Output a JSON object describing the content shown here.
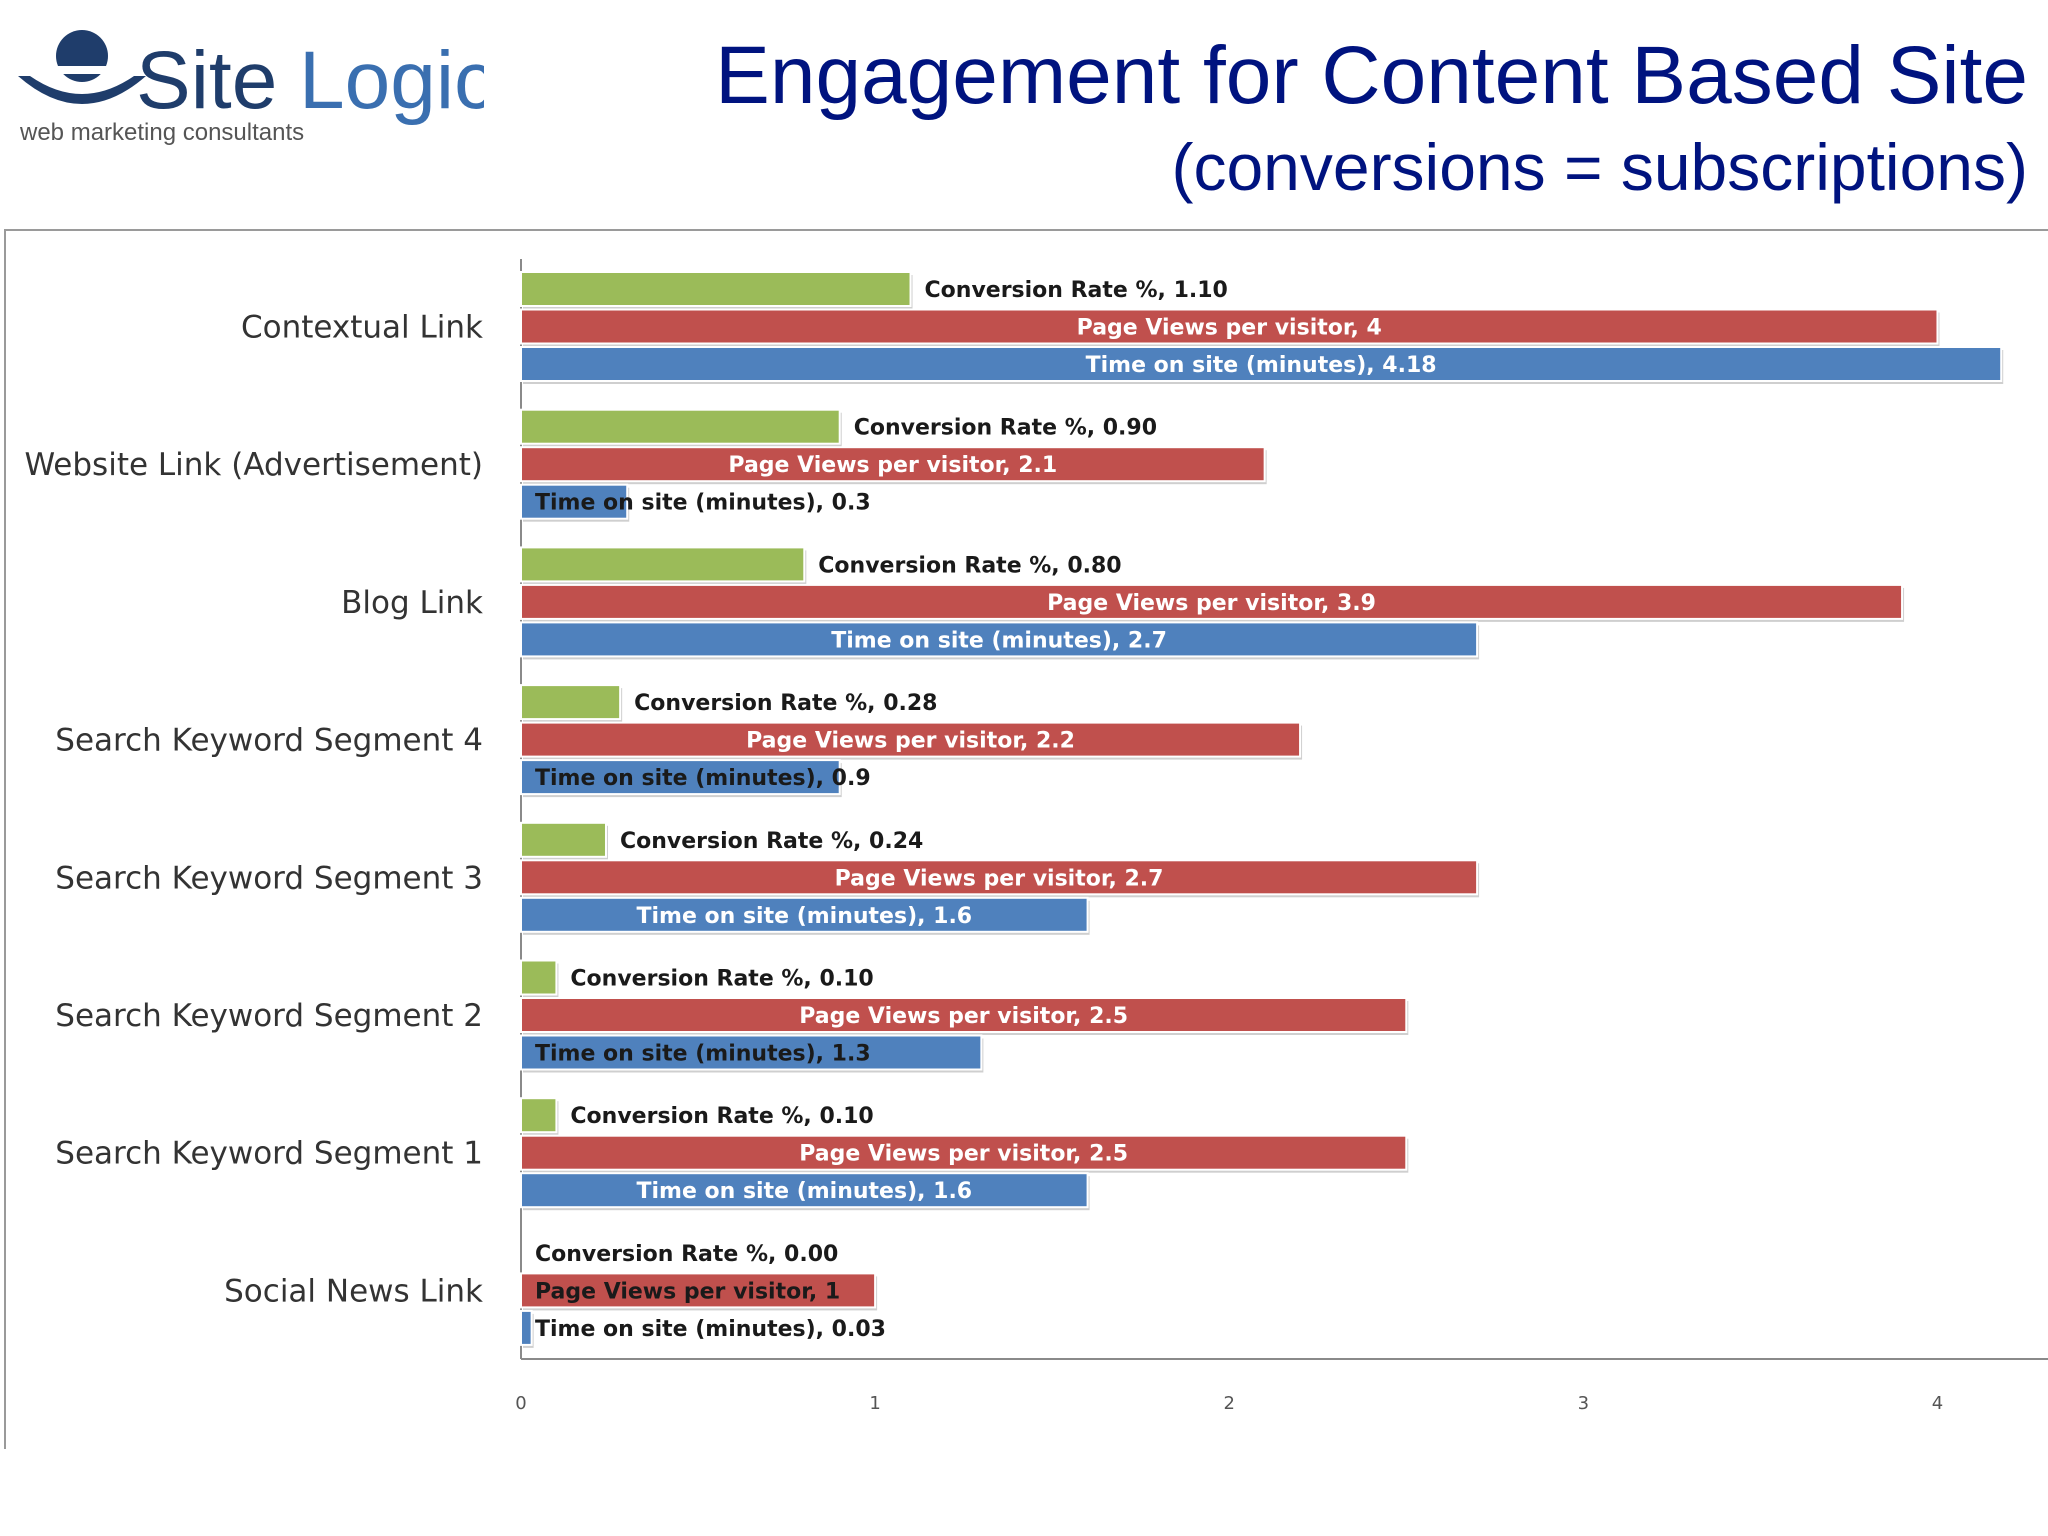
{
  "logo": {
    "brand_part1": "Site",
    "brand_part2": "Logic",
    "tagline": "web marketing consultants",
    "colors": {
      "navy": "#1f3d6b",
      "blue": "#3a6fb0"
    }
  },
  "header": {
    "title": "Engagement for Content Based Site",
    "subtitle": "(conversions = subscriptions)",
    "title_color": "#00137f"
  },
  "chart_data": {
    "type": "bar",
    "orientation": "horizontal",
    "title": "",
    "xlabel": "",
    "ylabel": "",
    "xlim": [
      0,
      4.25
    ],
    "x_ticks": [
      "0",
      "1",
      "2",
      "3",
      "4"
    ],
    "grid": false,
    "legend": "none",
    "categories": [
      "Contextual Link",
      "Website Link (Advertisement)",
      "Blog Link",
      "Search Keyword Segment 4",
      "Search Keyword Segment 3",
      "Search Keyword Segment 2",
      "Search Keyword Segment 1",
      "Social News Link"
    ],
    "series": [
      {
        "label_text": "Conversion Rate %",
        "color": "#9bbb59",
        "label_inside": false,
        "values": [
          1.1,
          0.9,
          0.8,
          0.28,
          0.24,
          0.1,
          0.1,
          0.0
        ],
        "data_labels": [
          "Conversion Rate %, 1.10",
          "Conversion Rate %, 0.90",
          "Conversion Rate %, 0.80",
          "Conversion Rate %, 0.28",
          "Conversion Rate %, 0.24",
          "Conversion Rate %, 0.10",
          "Conversion Rate %, 0.10",
          "Conversion Rate %, 0.00"
        ]
      },
      {
        "label_text": "Page Views per visitor",
        "color": "#c0504d",
        "label_inside": true,
        "values": [
          4,
          2.1,
          3.9,
          2.2,
          2.7,
          2.5,
          2.5,
          1
        ],
        "data_labels": [
          "Page Views per visitor, 4",
          "Page Views per visitor, 2.1",
          "Page Views per visitor, 3.9",
          "Page Views per visitor, 2.2",
          "Page Views per visitor, 2.7",
          "Page Views per visitor, 2.5",
          "Page Views per visitor, 2.5",
          "Page Views per visitor, 1"
        ]
      },
      {
        "label_text": "Time on site (minutes)",
        "color": "#4f81bd",
        "label_inside": true,
        "values": [
          4.18,
          0.3,
          2.7,
          0.9,
          1.6,
          1.3,
          1.6,
          0.03
        ],
        "data_labels": [
          "Time on site (minutes), 4.18",
          "Time on site (minutes), 0.3",
          "Time on site (minutes), 2.7",
          "Time on site (minutes), 0.9",
          "Time on site (minutes), 1.6",
          "Time on site (minutes), 1.3",
          "Time on site (minutes), 1.6",
          "Time on site (minutes), 0.03"
        ]
      }
    ]
  }
}
